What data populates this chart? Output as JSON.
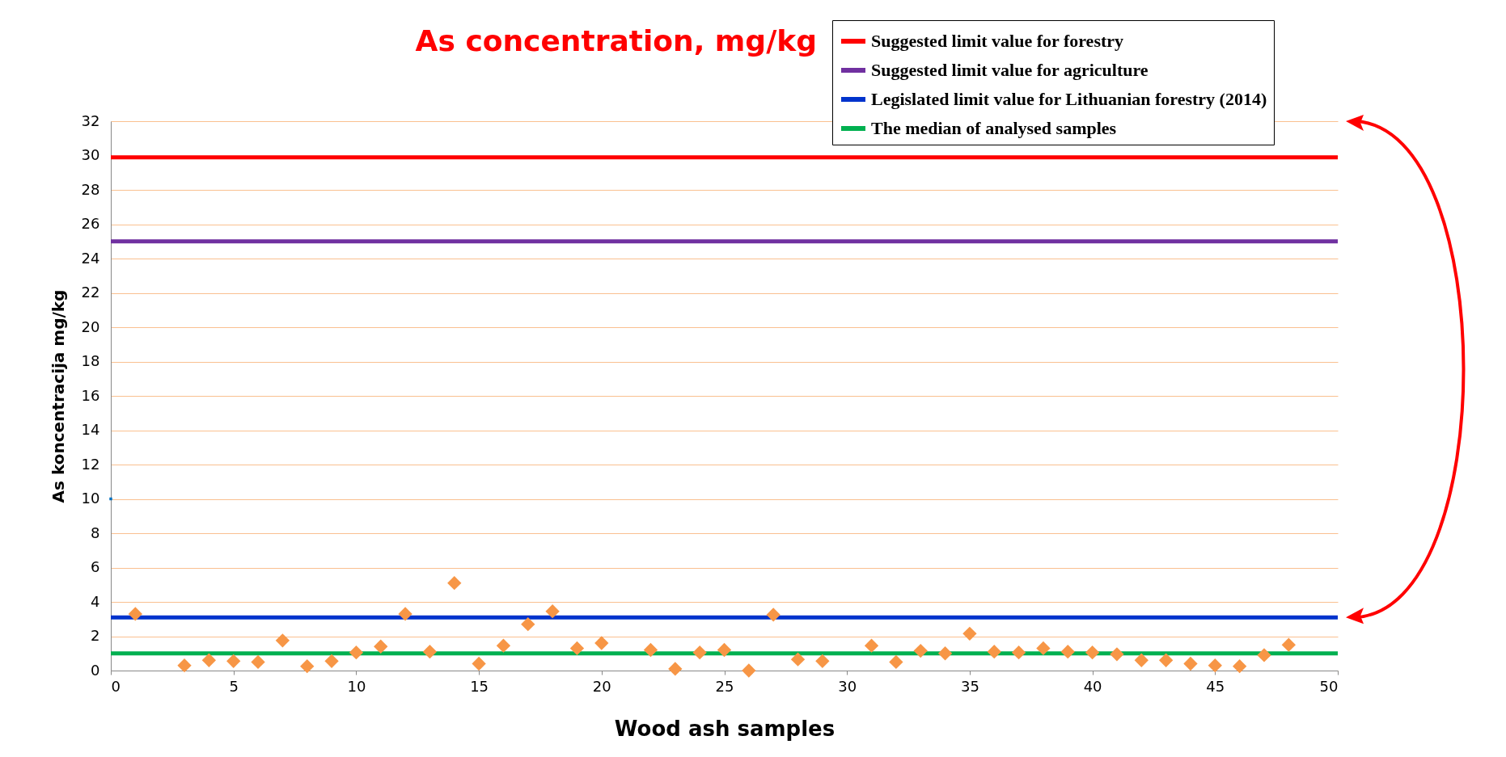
{
  "chart_data": {
    "type": "scatter",
    "title": "As concentration, mg/kg",
    "xlabel": "Wood ash samples",
    "ylabel": "As koncentracija mg/kg",
    "xlim": [
      0,
      50
    ],
    "xticks": [
      0,
      5,
      10,
      15,
      20,
      25,
      30,
      35,
      40,
      45,
      50
    ],
    "ylim": [
      0,
      32
    ],
    "yticks": [
      0,
      2,
      4,
      6,
      8,
      10,
      12,
      14,
      16,
      18,
      20,
      22,
      24,
      26,
      28,
      30,
      32
    ],
    "grid": "y",
    "legend": "top right",
    "series": [
      {
        "name": "Suggested limit value for forestry",
        "type": "line",
        "color": "#ff0000",
        "marker": "none",
        "x": [
          0,
          50
        ],
        "values": [
          29.9,
          29.9
        ]
      },
      {
        "name": "Suggested limit value for agriculture",
        "type": "line",
        "color": "#7030a0",
        "marker": "none",
        "x": [
          0,
          50
        ],
        "values": [
          25,
          25
        ]
      },
      {
        "name": "Legislated limit value for Lithuanian forestry (2014)",
        "type": "line",
        "color": "#0033cc",
        "marker": "none",
        "x": [
          0,
          50
        ],
        "values": [
          3.1,
          3.1
        ]
      },
      {
        "name": "The median of analysed samples",
        "type": "line",
        "color": "#00b050",
        "marker": "none",
        "x": [
          0,
          50
        ],
        "values": [
          1,
          1
        ]
      },
      {
        "color": "#f79646",
        "marker": "diamond",
        "x": [
          1,
          3,
          4,
          5,
          6,
          7,
          8,
          9,
          10,
          11,
          12,
          13,
          14,
          15,
          16,
          17,
          18,
          19,
          20,
          22,
          23,
          24,
          25,
          26,
          27,
          28,
          29,
          31,
          32,
          33,
          34,
          35,
          36,
          37,
          38,
          39,
          40,
          41,
          42,
          43,
          44,
          45,
          46,
          47,
          48
        ],
        "values": [
          3.3,
          0.3,
          0.6,
          0.55,
          0.5,
          1.75,
          0.25,
          0.55,
          1.05,
          1.4,
          3.3,
          1.1,
          5.1,
          0.4,
          1.45,
          2.7,
          3.45,
          1.3,
          1.6,
          1.2,
          0.1,
          1.05,
          1.2,
          0,
          3.25,
          0.65,
          0.55,
          1.45,
          0.5,
          1.15,
          1.0,
          2.15,
          1.1,
          1.05,
          1.3,
          1.1,
          1.05,
          0.95,
          0.6,
          0.6,
          0.4,
          0.3,
          0.25,
          0.9,
          1.5
        ]
      },
      {
        "color": "#0070c0",
        "marker": "square",
        "x": [
          0
        ],
        "values": [
          10
        ]
      }
    ]
  }
}
